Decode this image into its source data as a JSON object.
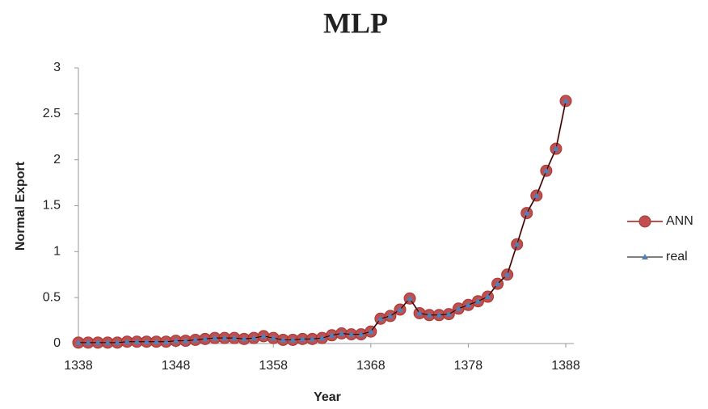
{
  "chart_data": {
    "type": "line",
    "title": "MLP",
    "x_label": "Year",
    "y_label": "Normal Export",
    "x": [
      1338,
      1339,
      1340,
      1341,
      1342,
      1343,
      1344,
      1345,
      1346,
      1347,
      1348,
      1349,
      1350,
      1351,
      1352,
      1353,
      1354,
      1355,
      1356,
      1357,
      1358,
      1359,
      1360,
      1361,
      1362,
      1363,
      1364,
      1365,
      1366,
      1367,
      1368,
      1369,
      1370,
      1371,
      1372,
      1373,
      1374,
      1375,
      1376,
      1377,
      1378,
      1379,
      1380,
      1381,
      1382,
      1383,
      1384,
      1385,
      1386,
      1387,
      1388
    ],
    "series": [
      {
        "name": "ANN",
        "color": "#c0504d",
        "marker": "circle",
        "values": [
          0.01,
          0.01,
          0.01,
          0.01,
          0.01,
          0.02,
          0.02,
          0.02,
          0.02,
          0.02,
          0.03,
          0.03,
          0.04,
          0.05,
          0.06,
          0.06,
          0.06,
          0.05,
          0.06,
          0.08,
          0.06,
          0.04,
          0.04,
          0.05,
          0.05,
          0.06,
          0.09,
          0.11,
          0.1,
          0.1,
          0.13,
          0.27,
          0.3,
          0.37,
          0.49,
          0.33,
          0.31,
          0.31,
          0.32,
          0.38,
          0.42,
          0.46,
          0.51,
          0.65,
          0.75,
          1.08,
          1.42,
          1.61,
          1.88,
          2.12,
          2.64
        ]
      },
      {
        "name": "real",
        "color": "#000000",
        "marker_color": "#4f81bd",
        "marker": "triangle",
        "values": [
          0.01,
          0.01,
          0.01,
          0.01,
          0.01,
          0.02,
          0.02,
          0.02,
          0.02,
          0.02,
          0.03,
          0.03,
          0.04,
          0.05,
          0.06,
          0.06,
          0.06,
          0.05,
          0.06,
          0.08,
          0.06,
          0.04,
          0.04,
          0.05,
          0.05,
          0.06,
          0.09,
          0.11,
          0.1,
          0.1,
          0.13,
          0.27,
          0.3,
          0.37,
          0.49,
          0.33,
          0.31,
          0.31,
          0.32,
          0.38,
          0.42,
          0.46,
          0.51,
          0.65,
          0.75,
          1.08,
          1.42,
          1.61,
          1.88,
          2.12,
          2.64
        ]
      }
    ],
    "xlim": [
      1338,
      1388
    ],
    "xticks": [
      1338,
      1348,
      1358,
      1368,
      1378,
      1388
    ],
    "ylim": [
      0,
      3
    ],
    "yticks": [
      0,
      0.5,
      1,
      1.5,
      2,
      2.5,
      3
    ],
    "grid": false,
    "legend": "right"
  }
}
